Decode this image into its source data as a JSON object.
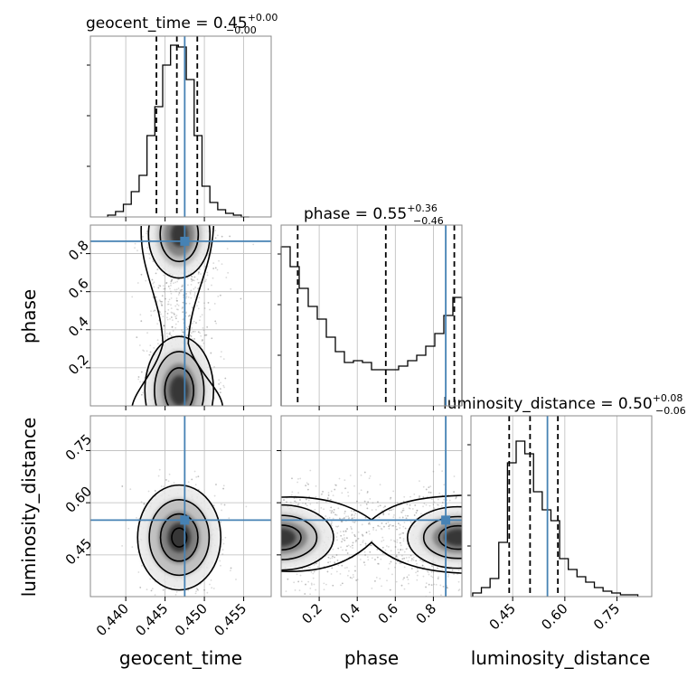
{
  "colors": {
    "truth": "#4682b4",
    "hist": "#000000",
    "grid": "#bbbbbb",
    "frame": "#888888"
  },
  "chart_data": {
    "type": "corner",
    "parameters": [
      "geocent_time",
      "phase",
      "luminosity_distance"
    ],
    "truths": {
      "geocent_time": 0.4475,
      "phase": 0.865,
      "luminosity_distance": 0.55
    },
    "titles": [
      {
        "param": "geocent_time",
        "prefix": "geocent_time = 0.45",
        "plus": "+0.00",
        "minus": "−0.00"
      },
      {
        "param": "phase",
        "prefix": "phase = 0.55",
        "plus": "+0.36",
        "minus": "−0.46"
      },
      {
        "param": "luminosity_distance",
        "prefix": "luminosity_distance = 0.50",
        "plus": "+0.08",
        "minus": "−0.06"
      }
    ],
    "ranges": {
      "geocent_time": [
        0.4355,
        0.4585
      ],
      "phase": [
        0.0,
        0.95
      ],
      "luminosity_distance": [
        0.33,
        0.85
      ]
    },
    "tick_labels": {
      "geocent_time": {
        "values": [
          0.44,
          0.445,
          0.45,
          0.455
        ],
        "labels": [
          "0.440",
          "0.445",
          "0.450",
          "0.455"
        ]
      },
      "phase": {
        "values": [
          0.2,
          0.4,
          0.6,
          0.8
        ],
        "labels": [
          "0.2",
          "0.4",
          "0.6",
          "0.8"
        ]
      },
      "luminosity_distance": {
        "values": [
          0.45,
          0.6,
          0.75
        ],
        "labels": [
          "0.45",
          "0.60",
          "0.75"
        ]
      }
    },
    "axis_labels": {
      "geocent_time": "geocent_time",
      "phase": "phase",
      "luminosity_distance": "luminosity_distance"
    },
    "quantiles": {
      "geocent_time": [
        0.4439,
        0.4465,
        0.4491
      ],
      "phase": [
        0.087,
        0.55,
        0.91
      ],
      "luminosity_distance": [
        0.44,
        0.5,
        0.58
      ]
    },
    "histograms": {
      "geocent_time": {
        "edges": [
          0.4377,
          0.4387,
          0.4397,
          0.4407,
          0.4417,
          0.4427,
          0.4437,
          0.4447,
          0.4457,
          0.4467,
          0.4477,
          0.4487,
          0.4497,
          0.4507,
          0.4517,
          0.4527,
          0.4537,
          0.4547,
          0.4557
        ],
        "counts": [
          0.01,
          0.03,
          0.07,
          0.14,
          0.23,
          0.45,
          0.61,
          0.84,
          0.95,
          0.94,
          0.76,
          0.45,
          0.17,
          0.08,
          0.04,
          0.02,
          0.01,
          0.0
        ]
      },
      "phase": {
        "bins": 20,
        "counts": [
          0.88,
          0.77,
          0.65,
          0.55,
          0.48,
          0.38,
          0.3,
          0.24,
          0.25,
          0.24,
          0.2,
          0.2,
          0.2,
          0.22,
          0.25,
          0.28,
          0.33,
          0.4,
          0.5,
          0.6
        ]
      },
      "luminosity_distance": {
        "edges": [
          0.335,
          0.36,
          0.385,
          0.41,
          0.435,
          0.46,
          0.485,
          0.51,
          0.535,
          0.56,
          0.585,
          0.61,
          0.635,
          0.66,
          0.685,
          0.71,
          0.735,
          0.76,
          0.785,
          0.81
        ],
        "counts": [
          0.02,
          0.05,
          0.1,
          0.3,
          0.74,
          0.86,
          0.79,
          0.58,
          0.48,
          0.42,
          0.21,
          0.15,
          0.11,
          0.08,
          0.05,
          0.03,
          0.02,
          0.01,
          0.01
        ]
      }
    }
  }
}
